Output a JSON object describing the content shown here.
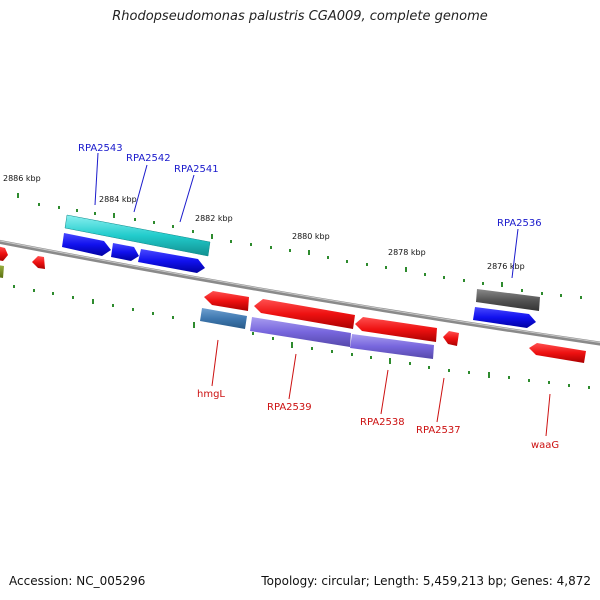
{
  "title": "Rhodopseudomonas palustris CGA009, complete genome",
  "footer": {
    "accession": "Accession: NC_005296",
    "summary": "Topology: circular; Length: 5,459,213 bp; Genes: 4,872"
  },
  "colors": {
    "backbone": "#8a8a8a",
    "tick_dots": "#2e8b2e",
    "forward_label": "#1a1acc",
    "reverse_label": "#cc1111",
    "red_gene": "#ee1111",
    "blue_gene": "#1111ee",
    "cyan_gene": "#22cccc",
    "gray_gene": "#555555",
    "steel_gene": "#3f78b0",
    "purple_gene": "#7766dd"
  },
  "ruler": [
    "2886 kbp",
    "2884 kbp",
    "2882 kbp",
    "2880 kbp",
    "2878 kbp",
    "2876 kbp"
  ],
  "forward_labels": [
    "RPA2543",
    "RPA2542",
    "RPA2541",
    "RPA2536"
  ],
  "reverse_labels": [
    "hmgL",
    "RPA2539",
    "RPA2538",
    "RPA2537",
    "waaG"
  ]
}
